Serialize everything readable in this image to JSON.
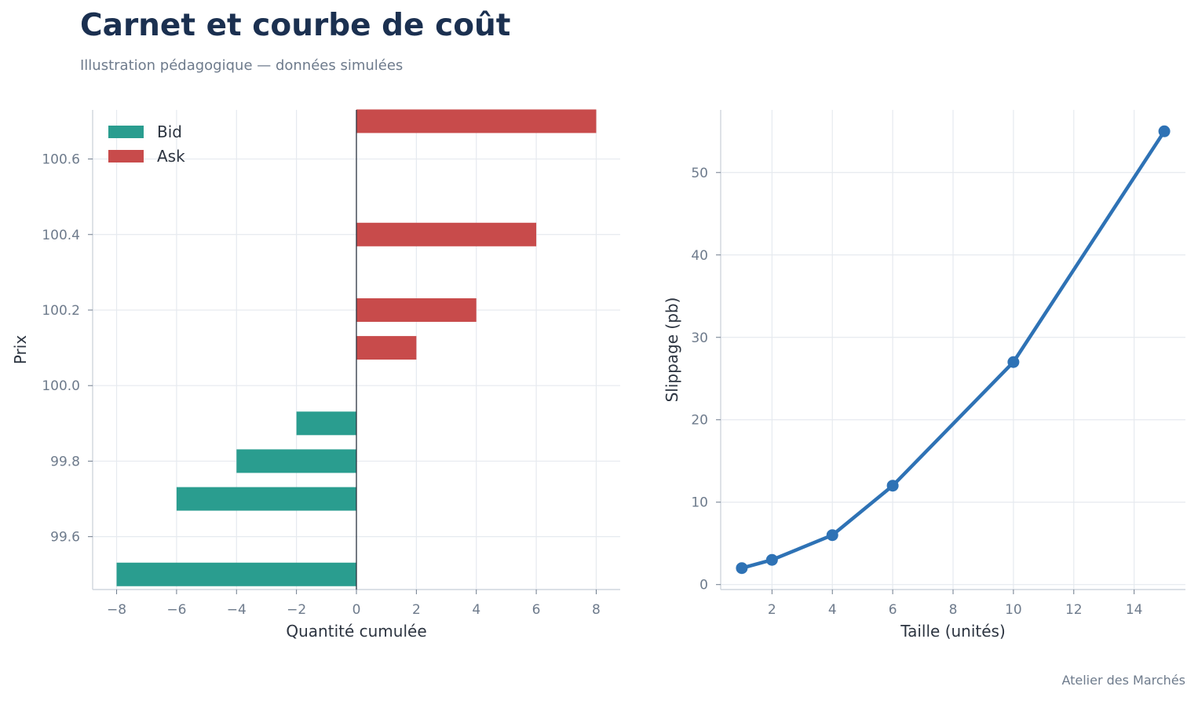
{
  "page": {
    "title": "Carnet et courbe de coût",
    "subtitle": "Illustration pédagogique — données simulées",
    "credit": "Atelier des Marchés"
  },
  "colors": {
    "bid": "#2a9d8f",
    "ask": "#c84b4b",
    "line": "#2e72b5",
    "grid": "#e6eaef",
    "axis": "#cfd5dd",
    "zero_line": "#2c3440"
  },
  "chart_data": [
    {
      "type": "bar",
      "orientation": "horizontal",
      "xlabel": "Quantité cumulée",
      "ylabel": "Prix",
      "xlim": [
        -8.8,
        8.8
      ],
      "ylim": [
        99.46,
        100.73
      ],
      "x_ticks": [
        -8,
        -6,
        -4,
        -2,
        0,
        2,
        4,
        6,
        8
      ],
      "x_tick_labels": [
        "−8",
        "−6",
        "−4",
        "−2",
        "0",
        "2",
        "4",
        "6",
        "8"
      ],
      "y_ticks": [
        99.6,
        99.8,
        100.0,
        100.2,
        100.4,
        100.6
      ],
      "y_tick_labels": [
        "99.6",
        "99.8",
        "100.0",
        "100.2",
        "100.4",
        "100.6"
      ],
      "grid": true,
      "legend": "top-left",
      "series": [
        {
          "name": "Bid",
          "color_key": "bid",
          "points": [
            {
              "price": 99.9,
              "qty": -2
            },
            {
              "price": 99.8,
              "qty": -4
            },
            {
              "price": 99.7,
              "qty": -6
            },
            {
              "price": 99.5,
              "qty": -8
            }
          ]
        },
        {
          "name": "Ask",
          "color_key": "ask",
          "points": [
            {
              "price": 100.1,
              "qty": 2
            },
            {
              "price": 100.2,
              "qty": 4
            },
            {
              "price": 100.4,
              "qty": 6
            },
            {
              "price": 100.7,
              "qty": 8
            }
          ]
        }
      ]
    },
    {
      "type": "line",
      "xlabel": "Taille (unités)",
      "ylabel": "Slippage (pb)",
      "xlim": [
        0.3,
        15.7
      ],
      "ylim": [
        -0.6,
        57.6
      ],
      "x_ticks": [
        2,
        4,
        6,
        8,
        10,
        12,
        14
      ],
      "y_ticks": [
        0,
        10,
        20,
        30,
        40,
        50
      ],
      "grid": true,
      "series": [
        {
          "color_key": "line",
          "x": [
            1,
            2,
            4,
            6,
            10,
            15
          ],
          "y": [
            2,
            3,
            6,
            12,
            27,
            55
          ]
        }
      ]
    }
  ]
}
